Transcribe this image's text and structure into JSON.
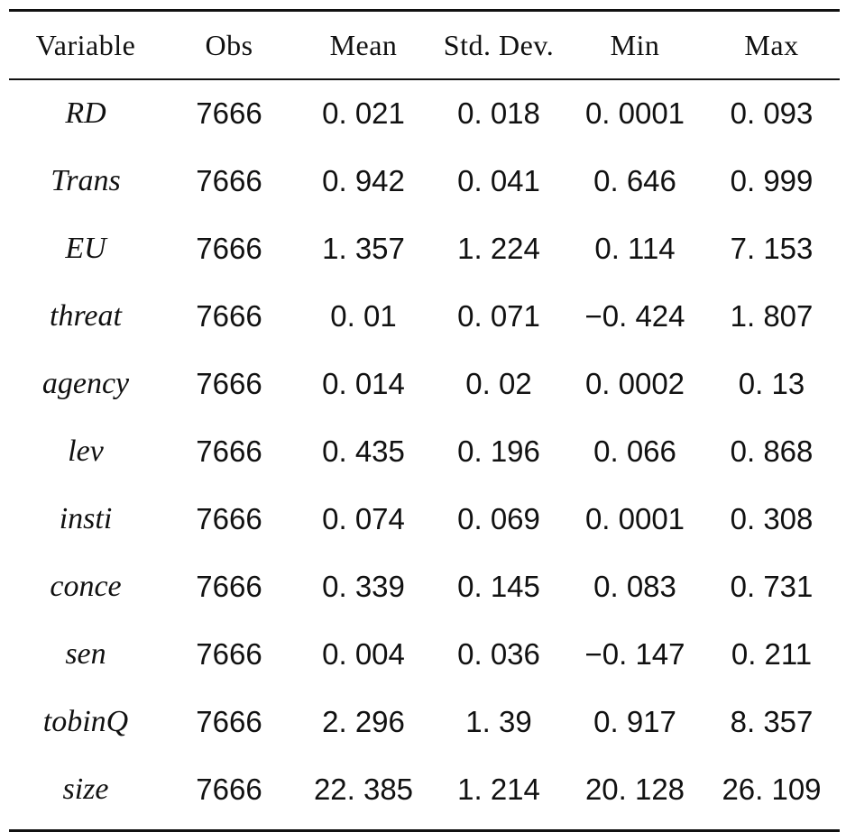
{
  "table": {
    "headers": [
      "Variable",
      "Obs",
      "Mean",
      "Std. Dev.",
      "Min",
      "Max"
    ],
    "rows": [
      {
        "variable": "RD",
        "obs": "7666",
        "mean": "0. 021",
        "sd": "0. 018",
        "min": "0. 0001",
        "max": "0. 093"
      },
      {
        "variable": "Trans",
        "obs": "7666",
        "mean": "0. 942",
        "sd": "0. 041",
        "min": "0. 646",
        "max": "0. 999"
      },
      {
        "variable": "EU",
        "obs": "7666",
        "mean": "1. 357",
        "sd": "1. 224",
        "min": "0. 114",
        "max": "7. 153"
      },
      {
        "variable": "threat",
        "obs": "7666",
        "mean": "0. 01",
        "sd": "0. 071",
        "min": "−0. 424",
        "max": "1. 807"
      },
      {
        "variable": "agency",
        "obs": "7666",
        "mean": "0. 014",
        "sd": "0. 02",
        "min": "0. 0002",
        "max": "0. 13"
      },
      {
        "variable": "lev",
        "obs": "7666",
        "mean": "0. 435",
        "sd": "0. 196",
        "min": "0. 066",
        "max": "0. 868"
      },
      {
        "variable": "insti",
        "obs": "7666",
        "mean": "0. 074",
        "sd": "0. 069",
        "min": "0. 0001",
        "max": "0. 308"
      },
      {
        "variable": "conce",
        "obs": "7666",
        "mean": "0. 339",
        "sd": "0. 145",
        "min": "0. 083",
        "max": "0. 731"
      },
      {
        "variable": "sen",
        "obs": "7666",
        "mean": "0. 004",
        "sd": "0. 036",
        "min": "−0. 147",
        "max": "0. 211"
      },
      {
        "variable": "tobinQ",
        "obs": "7666",
        "mean": "2. 296",
        "sd": "1. 39",
        "min": "0. 917",
        "max": "8. 357"
      },
      {
        "variable": "size",
        "obs": "7666",
        "mean": "22. 385",
        "sd": "1. 214",
        "min": "20. 128",
        "max": "26. 109"
      }
    ]
  }
}
